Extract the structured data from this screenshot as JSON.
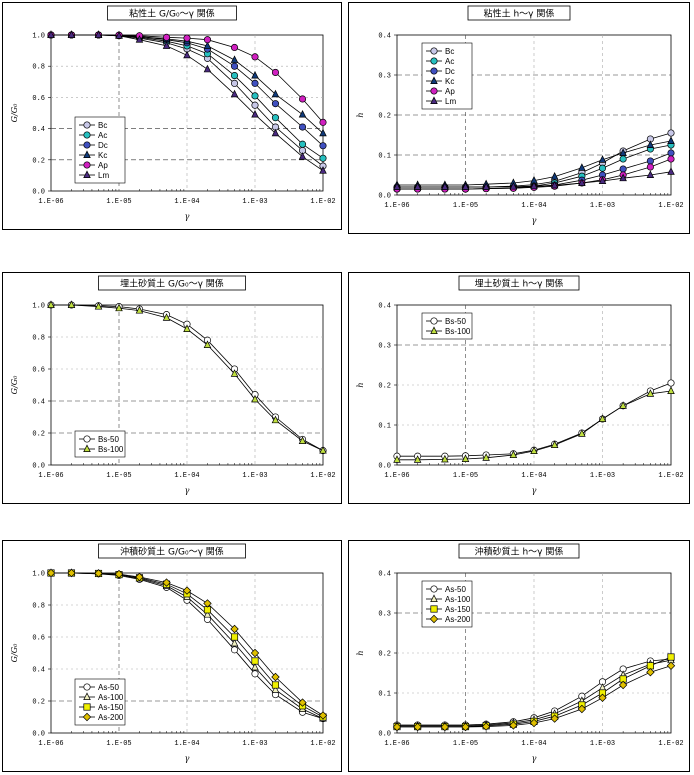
{
  "charts": [
    {
      "id": "c1",
      "title": "粘性土 G/G₀～γ 関係",
      "ylabel": "G/G₀",
      "xlabel": "γ",
      "type": "line",
      "xscale": "log",
      "xlim": [
        1e-06,
        0.01
      ],
      "ylim": [
        0,
        1.0
      ],
      "yticks": [
        "0.0",
        "0.2",
        "0.4",
        "0.6",
        "0.8",
        "1.0"
      ],
      "xticks": [
        "1.E-06",
        "1.E-05",
        "1.E-04",
        "1.E-03",
        "1.E-02"
      ],
      "dashed_grid_y": [
        0.2,
        0.4
      ],
      "legend": "lower-left",
      "x": [
        1e-06,
        2e-06,
        5e-06,
        1e-05,
        2e-05,
        5e-05,
        0.0001,
        0.0002,
        0.0005,
        0.001,
        0.002,
        0.005,
        0.01
      ],
      "series": [
        {
          "name": "Bc",
          "color": "#c8c8e8",
          "marker": "circle",
          "values": [
            1.0,
            1.0,
            1.0,
            0.995,
            0.98,
            0.95,
            0.91,
            0.85,
            0.69,
            0.55,
            0.41,
            0.26,
            0.16
          ]
        },
        {
          "name": "Ac",
          "color": "#27c0c0",
          "marker": "circle",
          "values": [
            1.0,
            1.0,
            1.0,
            0.997,
            0.985,
            0.96,
            0.93,
            0.88,
            0.74,
            0.61,
            0.47,
            0.3,
            0.21
          ]
        },
        {
          "name": "Dc",
          "color": "#4050c0",
          "marker": "circle",
          "values": [
            1.0,
            1.0,
            1.0,
            0.998,
            0.99,
            0.97,
            0.95,
            0.91,
            0.8,
            0.69,
            0.56,
            0.41,
            0.29
          ]
        },
        {
          "name": "Kc",
          "color": "#103a7a",
          "marker": "triangle",
          "values": [
            1.0,
            1.0,
            1.0,
            0.998,
            0.99,
            0.975,
            0.96,
            0.93,
            0.84,
            0.74,
            0.62,
            0.49,
            0.37
          ]
        },
        {
          "name": "Ap",
          "color": "#d020c0",
          "marker": "circle",
          "values": [
            1.0,
            1.0,
            1.0,
            0.999,
            0.995,
            0.985,
            0.98,
            0.97,
            0.92,
            0.86,
            0.76,
            0.59,
            0.44
          ]
        },
        {
          "name": "Lm",
          "color": "#4a2a80",
          "marker": "triangle",
          "values": [
            1.0,
            1.0,
            1.0,
            0.995,
            0.97,
            0.93,
            0.87,
            0.78,
            0.62,
            0.49,
            0.37,
            0.22,
            0.13
          ]
        }
      ]
    },
    {
      "id": "c2",
      "title": "粘性土 h～γ 関係",
      "ylabel": "h",
      "xlabel": "γ",
      "type": "line",
      "xscale": "log",
      "xlim": [
        1e-06,
        0.01
      ],
      "ylim": [
        0,
        0.4
      ],
      "yticks": [
        "0.0",
        "0.1",
        "0.2",
        "0.3",
        "0.4"
      ],
      "xticks": [
        "1.E-06",
        "1.E-05",
        "1.E-04",
        "1.E-03",
        "1.E-02"
      ],
      "dashed_grid_y": [
        0.1,
        0.2,
        0.3
      ],
      "legend": "top-left",
      "x": [
        1e-06,
        2e-06,
        5e-06,
        1e-05,
        2e-05,
        5e-05,
        0.0001,
        0.0002,
        0.0005,
        0.001,
        0.002,
        0.005,
        0.01
      ],
      "series": [
        {
          "name": "Bc",
          "color": "#c8c8e8",
          "marker": "circle",
          "values": [
            0.02,
            0.02,
            0.02,
            0.02,
            0.02,
            0.022,
            0.026,
            0.034,
            0.056,
            0.08,
            0.11,
            0.14,
            0.155
          ]
        },
        {
          "name": "Ac",
          "color": "#27c0c0",
          "marker": "circle",
          "values": [
            0.015,
            0.015,
            0.015,
            0.015,
            0.016,
            0.018,
            0.022,
            0.03,
            0.047,
            0.067,
            0.09,
            0.115,
            0.125
          ]
        },
        {
          "name": "Dc",
          "color": "#4050c0",
          "marker": "circle",
          "values": [
            0.015,
            0.015,
            0.015,
            0.015,
            0.016,
            0.017,
            0.02,
            0.025,
            0.037,
            0.05,
            0.065,
            0.085,
            0.105
          ]
        },
        {
          "name": "Kc",
          "color": "#103a7a",
          "marker": "triangle",
          "values": [
            0.025,
            0.025,
            0.025,
            0.025,
            0.027,
            0.03,
            0.036,
            0.046,
            0.068,
            0.088,
            0.105,
            0.125,
            0.135
          ]
        },
        {
          "name": "Ap",
          "color": "#d020c0",
          "marker": "circle",
          "values": [
            0.015,
            0.015,
            0.015,
            0.015,
            0.016,
            0.017,
            0.019,
            0.022,
            0.03,
            0.038,
            0.05,
            0.07,
            0.09
          ]
        },
        {
          "name": "Lm",
          "color": "#4a2a80",
          "marker": "triangle",
          "values": [
            0.02,
            0.02,
            0.02,
            0.02,
            0.02,
            0.021,
            0.022,
            0.024,
            0.03,
            0.035,
            0.042,
            0.05,
            0.058
          ]
        }
      ]
    },
    {
      "id": "c3",
      "title": "埋土砂質土 G/G₀～γ 関係",
      "ylabel": "G/G₀",
      "xlabel": "γ",
      "type": "line",
      "xscale": "log",
      "xlim": [
        1e-06,
        0.01
      ],
      "ylim": [
        0,
        1.0
      ],
      "yticks": [
        "0.0",
        "0.2",
        "0.4",
        "0.6",
        "0.8",
        "1.0"
      ],
      "xticks": [
        "1.E-06",
        "1.E-05",
        "1.E-04",
        "1.E-03",
        "1.E-02"
      ],
      "dashed_grid_y": [
        0.2,
        0.4
      ],
      "legend": "lower-left",
      "x": [
        1e-06,
        2e-06,
        5e-06,
        1e-05,
        2e-05,
        5e-05,
        0.0001,
        0.0002,
        0.0005,
        0.001,
        0.002,
        0.005,
        0.01
      ],
      "series": [
        {
          "name": "Bs-50",
          "color": "#ffffff",
          "marker": "circle",
          "values": [
            1.0,
            1.0,
            0.995,
            0.99,
            0.975,
            0.94,
            0.88,
            0.78,
            0.6,
            0.44,
            0.3,
            0.16,
            0.09
          ]
        },
        {
          "name": "Bs-100",
          "color": "#c0e040",
          "marker": "triangle",
          "values": [
            1.0,
            1.0,
            0.99,
            0.98,
            0.965,
            0.92,
            0.85,
            0.75,
            0.57,
            0.41,
            0.28,
            0.15,
            0.09
          ]
        }
      ]
    },
    {
      "id": "c4",
      "title": "埋土砂質土 h～γ 関係",
      "ylabel": "h",
      "xlabel": "γ",
      "type": "line",
      "xscale": "log",
      "xlim": [
        1e-06,
        0.01
      ],
      "ylim": [
        0,
        0.4
      ],
      "yticks": [
        "0.0",
        "0.1",
        "0.2",
        "0.3",
        "0.4"
      ],
      "xticks": [
        "1.E-06",
        "1.E-05",
        "1.E-04",
        "1.E-03",
        "1.E-02"
      ],
      "dashed_grid_y": [
        0.3
      ],
      "legend": "top-left",
      "x": [
        1e-06,
        2e-06,
        5e-06,
        1e-05,
        2e-05,
        5e-05,
        0.0001,
        0.0002,
        0.0005,
        0.001,
        0.002,
        0.005,
        0.01
      ],
      "series": [
        {
          "name": "Bs-50",
          "color": "#ffffff",
          "marker": "circle",
          "values": [
            0.022,
            0.022,
            0.022,
            0.023,
            0.025,
            0.028,
            0.037,
            0.052,
            0.08,
            0.115,
            0.148,
            0.185,
            0.205
          ]
        },
        {
          "name": "Bs-100",
          "color": "#c0e040",
          "marker": "triangle",
          "values": [
            0.013,
            0.013,
            0.014,
            0.015,
            0.018,
            0.025,
            0.035,
            0.05,
            0.078,
            0.115,
            0.148,
            0.178,
            0.185
          ]
        }
      ]
    },
    {
      "id": "c5",
      "title": "沖積砂質土 G/G₀～γ 関係",
      "ylabel": "G/G₀",
      "xlabel": "γ",
      "type": "line",
      "xscale": "log",
      "xlim": [
        1e-06,
        0.01
      ],
      "ylim": [
        0,
        1.0
      ],
      "yticks": [
        "0.0",
        "0.2",
        "0.4",
        "0.6",
        "0.8",
        "1.0"
      ],
      "xticks": [
        "1.E-06",
        "1.E-05",
        "1.E-04",
        "1.E-03",
        "1.E-02"
      ],
      "dashed_grid_y": [
        0.2
      ],
      "legend": "lower-left",
      "x": [
        1e-06,
        2e-06,
        5e-06,
        1e-05,
        2e-05,
        5e-05,
        0.0001,
        0.0002,
        0.0005,
        0.001,
        0.002,
        0.005,
        0.01
      ],
      "series": [
        {
          "name": "As-50",
          "color": "#ffffff",
          "marker": "circle",
          "values": [
            1.0,
            1.0,
            0.995,
            0.985,
            0.96,
            0.91,
            0.83,
            0.71,
            0.52,
            0.37,
            0.24,
            0.13,
            0.09
          ]
        },
        {
          "name": "As-100",
          "color": "#f0f0c0",
          "marker": "triangle",
          "values": [
            1.0,
            1.0,
            0.995,
            0.99,
            0.965,
            0.92,
            0.85,
            0.74,
            0.56,
            0.41,
            0.27,
            0.15,
            0.09
          ]
        },
        {
          "name": "As-150",
          "color": "#f0f000",
          "marker": "square",
          "values": [
            1.0,
            1.0,
            0.997,
            0.99,
            0.97,
            0.93,
            0.87,
            0.77,
            0.6,
            0.45,
            0.3,
            0.17,
            0.1
          ]
        },
        {
          "name": "As-200",
          "color": "#e0c000",
          "marker": "diamond",
          "values": [
            1.0,
            1.0,
            0.998,
            0.993,
            0.975,
            0.94,
            0.89,
            0.81,
            0.65,
            0.5,
            0.35,
            0.19,
            0.11
          ]
        }
      ]
    },
    {
      "id": "c6",
      "title": "沖積砂質土 h～γ 関係",
      "ylabel": "h",
      "xlabel": "γ",
      "type": "line",
      "xscale": "log",
      "xlim": [
        1e-06,
        0.01
      ],
      "ylim": [
        0,
        0.4
      ],
      "yticks": [
        "0.0",
        "0.1",
        "0.2",
        "0.3",
        "0.4"
      ],
      "xticks": [
        "1.E-06",
        "1.E-05",
        "1.E-04",
        "1.E-03",
        "1.E-02"
      ],
      "dashed_grid_y": [
        0.3
      ],
      "legend": "top-left",
      "x": [
        1e-06,
        2e-06,
        5e-06,
        1e-05,
        2e-05,
        5e-05,
        0.0001,
        0.0002,
        0.0005,
        0.001,
        0.002,
        0.005,
        0.01
      ],
      "series": [
        {
          "name": "As-50",
          "color": "#ffffff",
          "marker": "circle",
          "values": [
            0.02,
            0.02,
            0.02,
            0.02,
            0.022,
            0.028,
            0.038,
            0.055,
            0.092,
            0.128,
            0.16,
            0.18,
            0.185
          ]
        },
        {
          "name": "As-100",
          "color": "#f0f0c0",
          "marker": "triangle",
          "values": [
            0.018,
            0.018,
            0.018,
            0.018,
            0.02,
            0.025,
            0.033,
            0.048,
            0.08,
            0.113,
            0.145,
            0.172,
            0.182
          ]
        },
        {
          "name": "As-150",
          "color": "#f0f000",
          "marker": "square",
          "values": [
            0.016,
            0.016,
            0.016,
            0.016,
            0.018,
            0.022,
            0.029,
            0.042,
            0.07,
            0.1,
            0.135,
            0.168,
            0.19
          ]
        },
        {
          "name": "As-200",
          "color": "#e0c000",
          "marker": "diamond",
          "values": [
            0.015,
            0.015,
            0.015,
            0.015,
            0.016,
            0.019,
            0.025,
            0.036,
            0.06,
            0.088,
            0.12,
            0.152,
            0.168
          ]
        }
      ]
    }
  ]
}
